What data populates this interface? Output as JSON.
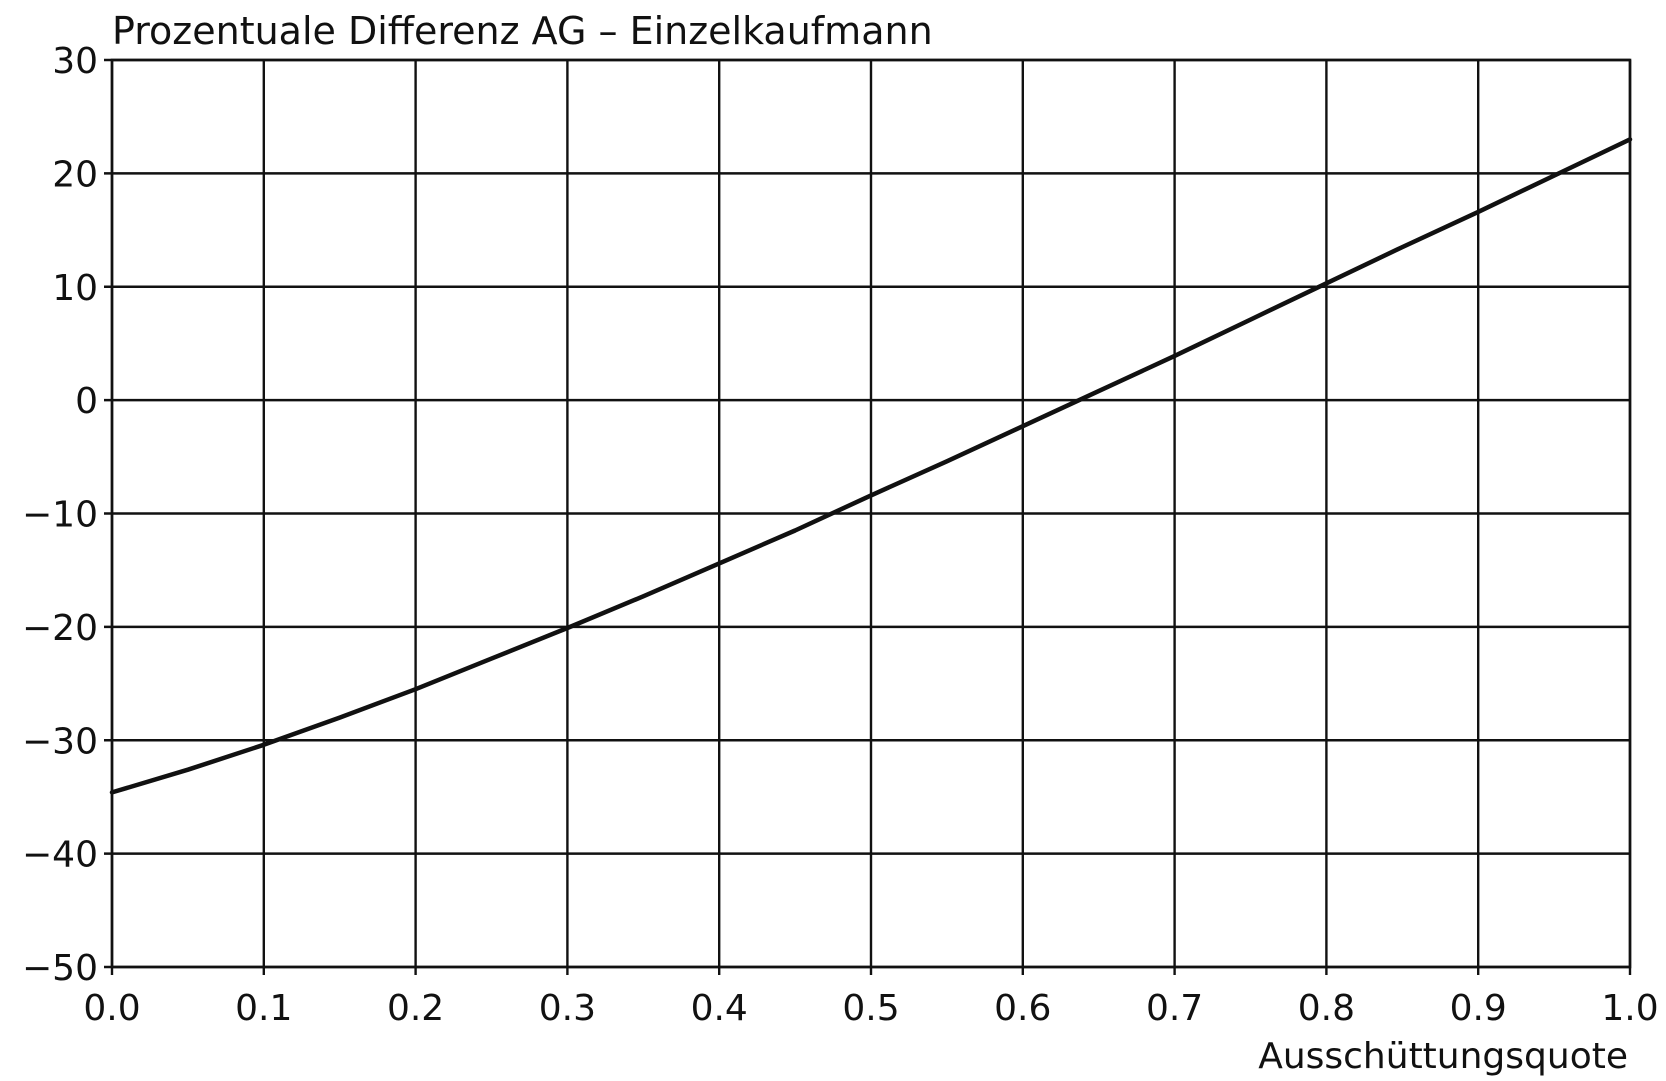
{
  "chart_data": {
    "type": "line",
    "title": "Prozentuale Differenz AG – Einzelkaufmann",
    "xlabel": "Ausschüttungsquote",
    "ylabel": "",
    "xlim": [
      0.0,
      1.0
    ],
    "ylim": [
      -50,
      30
    ],
    "x_ticks": [
      "0.0",
      "0.1",
      "0.2",
      "0.3",
      "0.4",
      "0.5",
      "0.6",
      "0.7",
      "0.8",
      "0.9",
      "1.0"
    ],
    "y_ticks": [
      "30",
      "20",
      "10",
      "0",
      "−10",
      "−20",
      "−30",
      "−40",
      "−50"
    ],
    "grid": true,
    "colors": {
      "line": "#111111",
      "grid": "#111111",
      "background": "#ffffff"
    },
    "series": [
      {
        "x": [
          0.0,
          0.05,
          0.1,
          0.15,
          0.2,
          0.25,
          0.3,
          0.35,
          0.4,
          0.45,
          0.5,
          0.55,
          0.6,
          0.65,
          0.7,
          0.75,
          0.8,
          0.85,
          0.9,
          0.95,
          1.0
        ],
        "values": [
          -34.6,
          -32.6,
          -30.4,
          -28.0,
          -25.5,
          -22.8,
          -20.1,
          -17.3,
          -14.4,
          -11.5,
          -8.4,
          -5.4,
          -2.3,
          0.8,
          3.9,
          7.1,
          10.3,
          13.5,
          16.6,
          19.8,
          23.0
        ]
      }
    ]
  }
}
